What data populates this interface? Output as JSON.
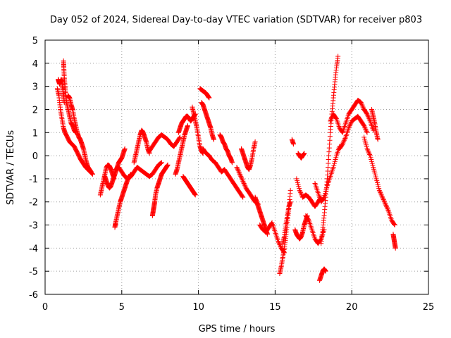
{
  "chart_data": {
    "type": "scatter",
    "title": "Day 052 of 2024, Sidereal Day-to-day VTEC variation (SDTVAR) for receiver p803",
    "xlabel": "GPS time / hours",
    "ylabel": "SDTVAR / TECUs",
    "xlim": [
      0,
      25
    ],
    "ylim": [
      -6,
      5
    ],
    "xticks": [
      0,
      5,
      10,
      15,
      20,
      25
    ],
    "yticks": [
      -6,
      -5,
      -4,
      -3,
      -2,
      -1,
      0,
      1,
      2,
      3,
      4,
      5
    ],
    "grid": true,
    "marker": "+",
    "color": "#ff0000",
    "series": [
      {
        "name": "SDTVAR",
        "segments": [
          {
            "x": [
              0.8,
              0.9,
              1.0,
              1.1,
              1.2,
              1.3,
              1.45,
              1.6,
              1.75,
              1.9,
              2.05,
              2.2,
              2.35,
              2.5,
              2.65,
              2.8,
              2.95,
              3.1
            ],
            "y": [
              2.9,
              2.6,
              2.0,
              1.6,
              1.2,
              1.0,
              0.8,
              0.6,
              0.5,
              0.4,
              0.2,
              0.0,
              -0.2,
              -0.35,
              -0.5,
              -0.6,
              -0.7,
              -0.8
            ]
          },
          {
            "x": [
              0.85,
              0.9,
              0.95,
              1.0,
              1.05,
              1.1,
              1.15,
              1.2,
              1.25
            ],
            "y": [
              3.3,
              3.2,
              3.1,
              3.2,
              3.3,
              3.2,
              2.9,
              2.6,
              2.3
            ]
          },
          {
            "x": [
              1.2,
              1.22,
              1.25,
              1.3,
              1.35,
              1.4,
              1.5,
              1.6,
              1.7,
              1.8,
              1.9,
              2.0
            ],
            "y": [
              4.1,
              3.8,
              3.4,
              3.0,
              2.6,
              2.3,
              2.0,
              1.7,
              1.4,
              1.3,
              1.1,
              1.0
            ]
          },
          {
            "x": [
              1.5,
              1.6,
              1.7,
              1.8,
              1.9,
              2.0,
              2.1,
              2.2,
              2.3,
              2.4,
              2.5,
              2.6,
              2.7,
              2.8,
              2.9,
              3.0
            ],
            "y": [
              2.6,
              2.5,
              2.2,
              2.0,
              1.6,
              1.3,
              1.0,
              0.8,
              0.7,
              0.5,
              0.3,
              0.0,
              -0.3,
              -0.5,
              -0.6,
              -0.7
            ]
          },
          {
            "x": [
              3.6,
              3.7,
              3.8,
              3.9,
              4.0,
              4.1,
              4.2,
              4.3,
              4.4,
              4.5
            ],
            "y": [
              -1.7,
              -1.4,
              -1.1,
              -0.8,
              -0.5,
              -0.4,
              -0.45,
              -0.6,
              -0.8,
              -1.0
            ]
          },
          {
            "x": [
              3.9,
              4.0,
              4.1,
              4.2,
              4.3,
              4.4,
              4.5,
              4.6,
              4.7,
              4.8,
              4.9,
              5.0,
              5.1,
              5.2
            ],
            "y": [
              -0.9,
              -1.1,
              -1.3,
              -1.4,
              -1.3,
              -1.1,
              -0.9,
              -0.7,
              -0.5,
              -0.3,
              -0.2,
              -0.1,
              0.1,
              0.3
            ]
          },
          {
            "x": [
              4.55,
              4.6,
              4.7,
              4.8,
              4.9,
              5.0,
              5.1,
              5.2,
              5.3,
              5.4,
              5.5,
              5.6
            ],
            "y": [
              -3.1,
              -2.9,
              -2.6,
              -2.3,
              -2.0,
              -1.8,
              -1.6,
              -1.4,
              -1.2,
              -1.0,
              -0.9,
              -0.8
            ]
          },
          {
            "x": [
              4.6,
              4.8,
              5.0,
              5.2,
              5.4,
              5.6,
              5.8,
              6.0,
              6.2,
              6.4,
              6.6,
              6.8,
              7.0,
              7.2,
              7.4,
              7.6
            ],
            "y": [
              -0.6,
              -0.5,
              -0.7,
              -0.9,
              -1.0,
              -0.9,
              -0.7,
              -0.5,
              -0.6,
              -0.7,
              -0.8,
              -0.9,
              -0.8,
              -0.6,
              -0.4,
              -0.3
            ]
          },
          {
            "x": [
              5.8,
              5.9,
              6.0,
              6.1,
              6.2,
              6.3,
              6.4,
              6.5,
              6.6,
              6.7,
              6.8
            ],
            "y": [
              -0.3,
              0.0,
              0.3,
              0.6,
              0.9,
              1.1,
              1.0,
              0.8,
              0.6,
              0.3,
              0.1
            ]
          },
          {
            "x": [
              7.0,
              7.05,
              7.1,
              7.15,
              7.2,
              7.3,
              7.4,
              7.5,
              7.6,
              7.7,
              7.8,
              7.9,
              8.0
            ],
            "y": [
              -2.6,
              -2.4,
              -2.2,
              -2.0,
              -1.7,
              -1.4,
              -1.2,
              -1.0,
              -0.8,
              -0.7,
              -0.6,
              -0.5,
              -0.4
            ]
          },
          {
            "x": [
              6.8,
              7.0,
              7.2,
              7.4,
              7.6,
              7.8,
              8.0,
              8.2,
              8.4,
              8.6,
              8.8
            ],
            "y": [
              0.2,
              0.4,
              0.6,
              0.8,
              0.9,
              0.8,
              0.7,
              0.5,
              0.4,
              0.6,
              0.8
            ]
          },
          {
            "x": [
              8.7,
              8.8,
              8.9,
              9.0,
              9.1,
              9.2,
              9.3,
              9.4,
              9.5,
              9.6,
              9.7,
              9.8
            ],
            "y": [
              1.0,
              1.2,
              1.4,
              1.5,
              1.6,
              1.7,
              1.7,
              1.6,
              1.5,
              1.6,
              1.7,
              1.8
            ]
          },
          {
            "x": [
              9.0,
              9.1,
              9.2,
              9.3,
              9.4,
              9.5,
              9.6,
              9.7,
              9.8
            ],
            "y": [
              -0.9,
              -1.0,
              -1.1,
              -1.2,
              -1.3,
              -1.4,
              -1.5,
              -1.6,
              -1.7
            ]
          },
          {
            "x": [
              8.5,
              8.6,
              8.7,
              8.8,
              8.9,
              9.0,
              9.1,
              9.2,
              9.3
            ],
            "y": [
              -0.8,
              -0.6,
              -0.3,
              0.0,
              0.3,
              0.6,
              0.9,
              1.1,
              1.3
            ]
          },
          {
            "x": [
              9.6,
              9.7,
              9.8,
              9.9,
              10.0,
              10.1,
              10.2,
              10.3
            ],
            "y": [
              2.1,
              1.8,
              1.5,
              1.2,
              0.8,
              0.4,
              0.2,
              0.1
            ]
          },
          {
            "x": [
              10.1,
              10.2,
              10.3,
              10.4,
              10.5,
              10.6,
              10.7
            ],
            "y": [
              2.9,
              2.85,
              2.8,
              2.75,
              2.7,
              2.6,
              2.5
            ]
          },
          {
            "x": [
              10.2,
              10.3,
              10.4,
              10.5,
              10.6,
              10.7,
              10.8,
              10.9,
              11.0
            ],
            "y": [
              2.3,
              2.2,
              2.0,
              1.8,
              1.6,
              1.4,
              1.2,
              0.9,
              0.7
            ]
          },
          {
            "x": [
              10.3,
              10.5,
              10.7,
              10.9,
              11.1,
              11.3,
              11.5,
              11.7,
              11.9,
              12.1,
              12.3,
              12.5,
              12.7,
              12.9
            ],
            "y": [
              0.3,
              0.1,
              0.0,
              -0.2,
              -0.3,
              -0.5,
              -0.7,
              -0.6,
              -0.8,
              -1.0,
              -1.2,
              -1.4,
              -1.6,
              -1.8
            ]
          },
          {
            "x": [
              11.4,
              11.5,
              11.6,
              11.7,
              11.8,
              11.9,
              12.0,
              12.1,
              12.2
            ],
            "y": [
              0.9,
              0.8,
              0.6,
              0.5,
              0.3,
              0.2,
              0.0,
              -0.1,
              -0.3
            ]
          },
          {
            "x": [
              12.5,
              12.7,
              12.9,
              13.1,
              13.3,
              13.5,
              13.7,
              13.9
            ],
            "y": [
              -0.5,
              -0.8,
              -1.1,
              -1.4,
              -1.6,
              -1.8,
              -2.0,
              -2.1
            ]
          },
          {
            "x": [
              12.8,
              12.9,
              13.0,
              13.1,
              13.2,
              13.3,
              13.4,
              13.5,
              13.6,
              13.7
            ],
            "y": [
              0.3,
              0.1,
              -0.1,
              -0.3,
              -0.5,
              -0.6,
              -0.4,
              -0.1,
              0.3,
              0.6
            ]
          },
          {
            "x": [
              13.7,
              13.8,
              13.9,
              14.0,
              14.1,
              14.2,
              14.3,
              14.4,
              14.5
            ],
            "y": [
              -1.8,
              -2.0,
              -2.2,
              -2.4,
              -2.6,
              -2.8,
              -3.0,
              -3.2,
              -3.4
            ]
          },
          {
            "x": [
              14.0,
              14.2,
              14.4,
              14.6,
              14.8,
              15.0,
              15.2,
              15.4,
              15.6
            ],
            "y": [
              -3.0,
              -3.2,
              -3.3,
              -3.1,
              -2.9,
              -3.3,
              -3.7,
              -4.0,
              -4.2
            ]
          },
          {
            "x": [
              15.3,
              15.4,
              15.5,
              15.6,
              15.7,
              15.8,
              15.9,
              16.0
            ],
            "y": [
              -5.1,
              -4.8,
              -4.4,
              -4.0,
              -3.5,
              -2.9,
              -2.3,
              -1.5
            ]
          },
          {
            "x": [
              15.5,
              15.6,
              15.7,
              15.8,
              15.9,
              16.0
            ],
            "y": [
              -3.8,
              -3.5,
              -3.0,
              -2.6,
              -2.2,
              -2.0
            ]
          },
          {
            "x": [
              16.1,
              16.2
            ],
            "y": [
              0.7,
              0.5
            ]
          },
          {
            "x": [
              16.3,
              16.4,
              16.5,
              16.6,
              16.7,
              16.8,
              16.9,
              17.0,
              17.1
            ],
            "y": [
              -3.2,
              -3.4,
              -3.5,
              -3.6,
              -3.5,
              -3.3,
              -3.0,
              -2.8,
              -2.6
            ]
          },
          {
            "x": [
              16.4,
              16.6,
              16.8,
              17.0,
              17.2,
              17.4,
              17.6,
              17.8,
              18.0
            ],
            "y": [
              -1.0,
              -1.5,
              -1.8,
              -1.7,
              -1.8,
              -2.0,
              -2.2,
              -2.0,
              -1.8
            ]
          },
          {
            "x": [
              16.5,
              16.6,
              16.7,
              16.8,
              16.9
            ],
            "y": [
              0.1,
              0.0,
              -0.1,
              0.0,
              0.1
            ]
          },
          {
            "x": [
              17.0,
              17.2,
              17.4,
              17.6,
              17.8,
              18.0,
              18.2
            ],
            "y": [
              -2.6,
              -2.8,
              -3.2,
              -3.6,
              -3.8,
              -3.6,
              -3.2
            ]
          },
          {
            "x": [
              17.9,
              18.0,
              18.1,
              18.2,
              18.3
            ],
            "y": [
              -5.4,
              -5.2,
              -5.0,
              -4.9,
              -5.0
            ]
          },
          {
            "x": [
              18.0,
              18.1,
              18.2,
              18.3,
              18.4,
              18.5,
              18.6,
              18.7,
              18.8,
              18.9,
              19.0,
              19.1
            ],
            "y": [
              -3.8,
              -3.2,
              -2.6,
              -1.8,
              -1.0,
              0.0,
              1.0,
              1.8,
              2.5,
              3.2,
              3.8,
              4.3
            ]
          },
          {
            "x": [
              17.6,
              17.8,
              18.0,
              18.2,
              18.4,
              18.6,
              18.8,
              19.0,
              19.2
            ],
            "y": [
              -1.2,
              -1.6,
              -2.0,
              -1.8,
              -1.3,
              -0.9,
              -0.5,
              0.0,
              0.4
            ]
          },
          {
            "x": [
              18.6,
              18.8,
              19.0,
              19.2,
              19.4,
              19.6,
              19.8,
              20.0,
              20.2,
              20.4,
              20.6,
              20.8,
              21.0,
              21.2,
              21.4
            ],
            "y": [
              1.5,
              1.8,
              1.6,
              1.2,
              1.0,
              1.4,
              1.8,
              2.0,
              2.2,
              2.4,
              2.3,
              2.0,
              1.8,
              1.5,
              1.1
            ]
          },
          {
            "x": [
              19.2,
              19.4,
              19.6,
              19.8,
              20.0,
              20.2,
              20.4,
              20.6,
              20.8,
              21.0
            ],
            "y": [
              0.3,
              0.5,
              0.8,
              1.2,
              1.5,
              1.6,
              1.7,
              1.5,
              1.3,
              1.0
            ]
          },
          {
            "x": [
              21.3,
              21.4,
              21.5,
              21.6,
              21.7
            ],
            "y": [
              2.0,
              1.7,
              1.4,
              1.0,
              0.7
            ]
          },
          {
            "x": [
              20.8,
              21.0,
              21.2,
              21.4,
              21.6,
              21.8,
              22.0,
              22.2,
              22.4,
              22.6,
              22.8
            ],
            "y": [
              0.8,
              0.3,
              0.0,
              -0.5,
              -1.0,
              -1.5,
              -1.8,
              -2.1,
              -2.4,
              -2.8,
              -3.0
            ]
          },
          {
            "x": [
              22.7,
              22.75,
              22.8,
              22.85
            ],
            "y": [
              -3.4,
              -3.6,
              -3.8,
              -4.0
            ]
          }
        ]
      }
    ]
  }
}
